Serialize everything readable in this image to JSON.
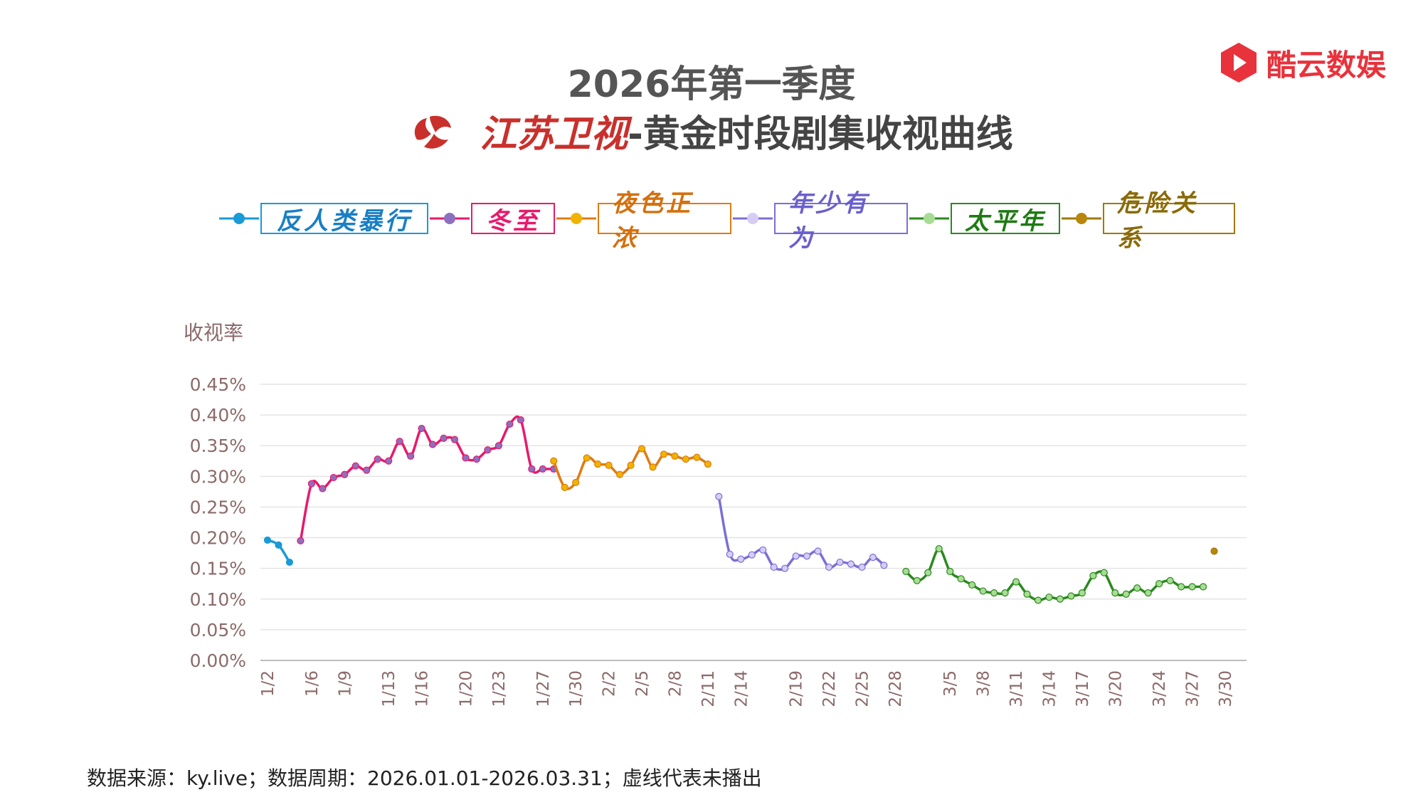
{
  "header": {
    "title_line1": "2026年第一季度",
    "channel_name": "江苏卫视",
    "title_line2_rest": "-黄金时段剧集收视曲线"
  },
  "brand": {
    "name": "酷云数娱",
    "color": "#e8323c"
  },
  "footer": {
    "text": "数据来源：ky.live；数据周期：2026.01.01-2026.03.31；虚线代表未播出"
  },
  "chart_data": {
    "type": "line",
    "ylabel": "收视率",
    "ylim": [
      0,
      0.45
    ],
    "y_ticks": [
      "0.00%",
      "0.05%",
      "0.10%",
      "0.15%",
      "0.20%",
      "0.25%",
      "0.30%",
      "0.35%",
      "0.40%",
      "0.45%"
    ],
    "x_tick_labels": [
      "1/2",
      "1/6",
      "1/9",
      "1/13",
      "1/16",
      "1/20",
      "1/23",
      "1/27",
      "1/30",
      "2/2",
      "2/5",
      "2/8",
      "2/11",
      "2/14",
      "2/19",
      "2/22",
      "2/25",
      "2/28",
      "3/5",
      "3/8",
      "3/11",
      "3/14",
      "3/17",
      "3/20",
      "3/24",
      "3/27",
      "3/30"
    ],
    "grid": true,
    "legend_position": "top",
    "series": [
      {
        "name": "反人类暴行",
        "color": "#1a9ad6",
        "x": [
          "1/2",
          "1/3",
          "1/4"
        ],
        "values": [
          0.196,
          0.188,
          0.16
        ]
      },
      {
        "name": "冬至",
        "color": "#e8196b",
        "marker_color": "#8e6fbf",
        "x": [
          "1/5",
          "1/6",
          "1/7",
          "1/8",
          "1/9",
          "1/10",
          "1/11",
          "1/12",
          "1/13",
          "1/14",
          "1/15",
          "1/16",
          "1/17",
          "1/18",
          "1/19",
          "1/20",
          "1/21",
          "1/22",
          "1/23",
          "1/24",
          "1/25",
          "1/26",
          "1/27",
          "1/28"
        ],
        "values": [
          0.195,
          0.288,
          0.28,
          0.298,
          0.303,
          0.317,
          0.31,
          0.328,
          0.325,
          0.357,
          0.333,
          0.378,
          0.352,
          0.362,
          0.36,
          0.33,
          0.328,
          0.343,
          0.35,
          0.385,
          0.392,
          0.312,
          0.312,
          0.312
        ]
      },
      {
        "name": "夜色正浓",
        "color": "#e07b12",
        "marker_color": "#f0b400",
        "x": [
          "1/28",
          "1/29",
          "1/30",
          "1/31",
          "2/1",
          "2/2",
          "2/3",
          "2/4",
          "2/5",
          "2/6",
          "2/7",
          "2/8",
          "2/9",
          "2/10",
          "2/11"
        ],
        "values": [
          0.325,
          0.282,
          0.29,
          0.33,
          0.32,
          0.318,
          0.303,
          0.318,
          0.345,
          0.315,
          0.336,
          0.333,
          0.328,
          0.331,
          0.32
        ]
      },
      {
        "name": "年少有为",
        "color": "#7a6fd6",
        "marker_color": "#d6ccf5",
        "x": [
          "2/12",
          "2/13",
          "2/14",
          "2/15",
          "2/16",
          "2/17",
          "2/18",
          "2/19",
          "2/20",
          "2/21",
          "2/22",
          "2/23",
          "2/24",
          "2/25",
          "2/26",
          "2/27"
        ],
        "values": [
          0.267,
          0.173,
          0.165,
          0.172,
          0.18,
          0.152,
          0.15,
          0.17,
          0.17,
          0.178,
          0.152,
          0.16,
          0.157,
          0.152,
          0.168,
          0.155
        ]
      },
      {
        "name": "太平年",
        "color": "#2a8a1e",
        "marker_color": "#a8dc94",
        "x": [
          "3/1",
          "3/2",
          "3/3",
          "3/4",
          "3/5",
          "3/6",
          "3/7",
          "3/8",
          "3/9",
          "3/10",
          "3/11",
          "3/12",
          "3/13",
          "3/14",
          "3/15",
          "3/16",
          "3/17",
          "3/18",
          "3/19",
          "3/20",
          "3/21",
          "3/22",
          "3/23",
          "3/24",
          "3/25",
          "3/26",
          "3/27",
          "3/28"
        ],
        "values": [
          0.145,
          0.13,
          0.143,
          0.182,
          0.145,
          0.133,
          0.123,
          0.113,
          0.11,
          0.11,
          0.128,
          0.108,
          0.098,
          0.103,
          0.1,
          0.105,
          0.11,
          0.138,
          0.143,
          0.11,
          0.108,
          0.118,
          0.11,
          0.125,
          0.13,
          0.12,
          0.12,
          0.12
        ]
      },
      {
        "name": "危险关系",
        "color": "#a07808",
        "marker_color": "#b8860b",
        "x": [
          "3/29"
        ],
        "values": [
          0.178
        ]
      }
    ]
  }
}
